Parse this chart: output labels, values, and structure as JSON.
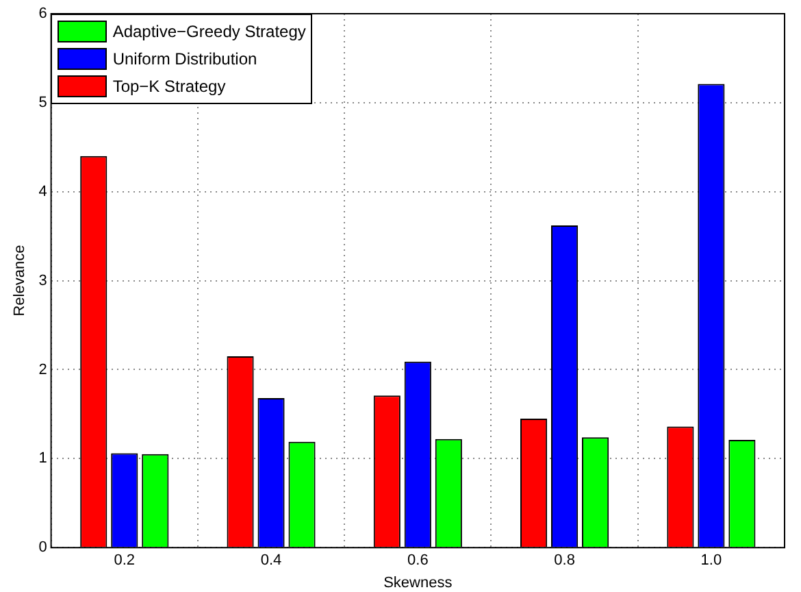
{
  "chart_data": {
    "type": "bar",
    "xlabel": "Skewness",
    "ylabel": "Relevance",
    "categories": [
      "0.2",
      "0.4",
      "0.6",
      "0.8",
      "1.0"
    ],
    "series": [
      {
        "name": "Top−K Strategy",
        "color": "#ff0000",
        "values": [
          4.4,
          2.15,
          1.71,
          1.45,
          1.36
        ]
      },
      {
        "name": "Uniform Distribution",
        "color": "#0000ff",
        "values": [
          1.06,
          1.68,
          2.09,
          3.62,
          5.21
        ]
      },
      {
        "name": "Adaptive−Greedy Strategy",
        "color": "#00ff00",
        "values": [
          1.05,
          1.19,
          1.22,
          1.24,
          1.21
        ]
      }
    ],
    "ylim": [
      0,
      6
    ],
    "yticks": [
      0,
      1,
      2,
      3,
      4,
      5,
      6
    ],
    "grid": true,
    "legend": "top left"
  }
}
